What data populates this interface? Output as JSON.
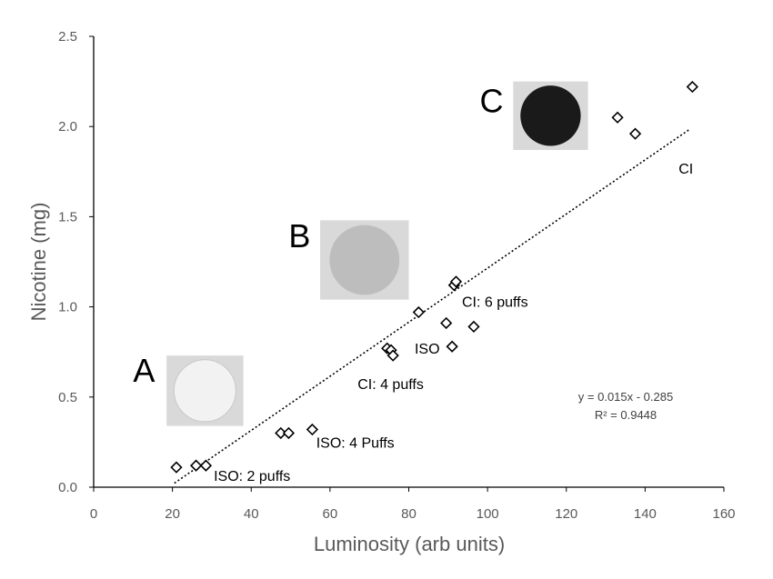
{
  "chart_data": {
    "type": "scatter",
    "xlabel": "Luminosity (arb units)",
    "ylabel": "Nicotine (mg)",
    "xlim": [
      0,
      160
    ],
    "ylim": [
      0,
      2.5
    ],
    "xticks": [
      "0",
      "20",
      "40",
      "60",
      "80",
      "100",
      "120",
      "140",
      "160"
    ],
    "yticks": [
      "0.0",
      "0.5",
      "1.0",
      "1.5",
      "2.0",
      "2.5"
    ],
    "grid": false,
    "marker": "open-diamond",
    "points": [
      {
        "x": 21,
        "y": 0.11
      },
      {
        "x": 26,
        "y": 0.12
      },
      {
        "x": 28.5,
        "y": 0.12
      },
      {
        "x": 47.5,
        "y": 0.3
      },
      {
        "x": 49.5,
        "y": 0.3
      },
      {
        "x": 55.5,
        "y": 0.32
      },
      {
        "x": 74.5,
        "y": 0.77
      },
      {
        "x": 75.5,
        "y": 0.76
      },
      {
        "x": 76,
        "y": 0.73
      },
      {
        "x": 82.5,
        "y": 0.97
      },
      {
        "x": 89.5,
        "y": 0.91
      },
      {
        "x": 91,
        "y": 0.78
      },
      {
        "x": 91.5,
        "y": 1.12
      },
      {
        "x": 92,
        "y": 1.14
      },
      {
        "x": 96.5,
        "y": 0.89
      },
      {
        "x": 133,
        "y": 2.05
      },
      {
        "x": 137.5,
        "y": 1.96
      },
      {
        "x": 152,
        "y": 2.22
      }
    ],
    "trendline": {
      "style": "dotted",
      "slope": 0.015,
      "intercept": -0.285,
      "x_range": [
        20.5,
        151.5
      ],
      "equation": "y = 0.015x - 0.285",
      "r2": "R² = 0.9448"
    },
    "annotations": [
      {
        "text": "ISO: 2 puffs",
        "x": 30.5,
        "y": 0.035
      },
      {
        "text": "ISO: 4 Puffs",
        "x": 56.5,
        "y": 0.22
      },
      {
        "text": "CI: 4 puffs",
        "x": 67,
        "y": 0.545
      },
      {
        "text": "ISO",
        "x": 81.5,
        "y": 0.74
      },
      {
        "text": "CI: 6 puffs",
        "x": 93.5,
        "y": 1.0
      },
      {
        "text": "CI",
        "x": 148.5,
        "y": 1.74
      }
    ],
    "insets": [
      {
        "letter": "A",
        "shade": "#f2f2f2",
        "letter_x": 10,
        "letter_y": 0.585,
        "img_x": [
          18.5,
          38
        ],
        "img_y": [
          0.73,
          0.34
        ]
      },
      {
        "letter": "B",
        "shade": "#bdbdbd",
        "letter_x": 49.5,
        "letter_y": 1.33,
        "img_x": [
          57.5,
          80
        ],
        "img_y": [
          1.48,
          1.04
        ]
      },
      {
        "letter": "C",
        "shade": "#1a1a1a",
        "letter_x": 98,
        "letter_y": 2.08,
        "img_x": [
          106.5,
          125.5
        ],
        "img_y": [
          2.25,
          1.87
        ]
      }
    ]
  }
}
